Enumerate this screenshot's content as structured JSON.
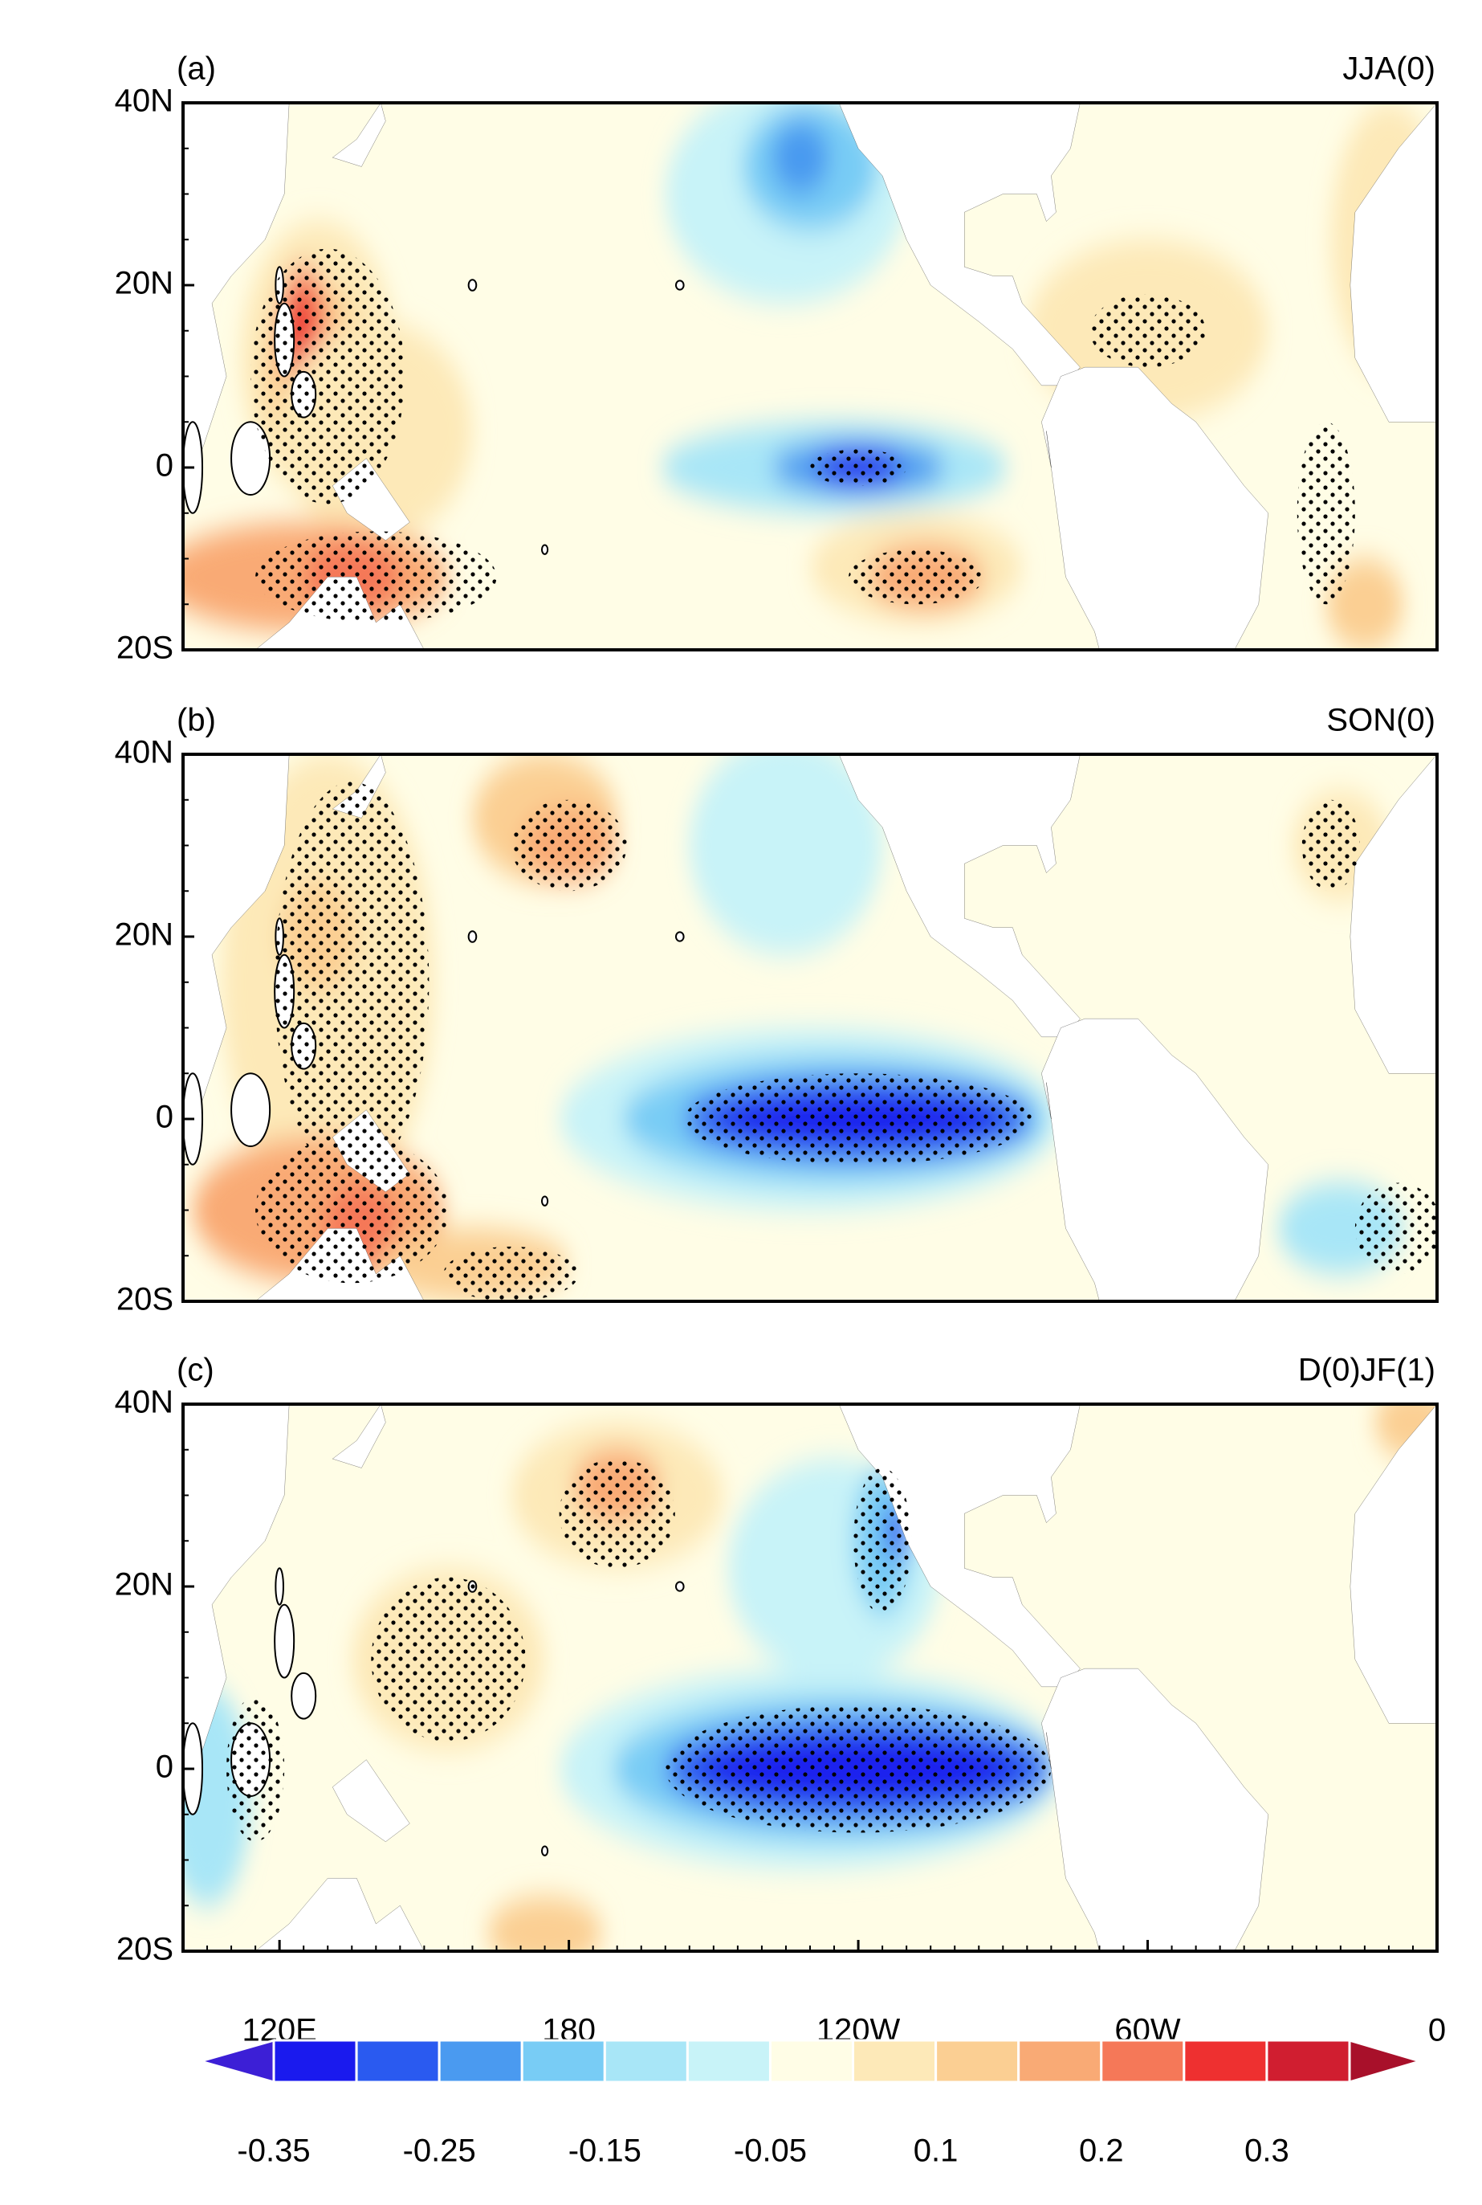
{
  "panels": [
    {
      "label": "(a)",
      "season": "JJA(0)"
    },
    {
      "label": "(b)",
      "season": "SON(0)"
    },
    {
      "label": "(c)",
      "season": "D(0)JF(1)"
    }
  ],
  "lat_ticks": [
    "40N",
    "20N",
    "0",
    "20S"
  ],
  "lon_ticks": [
    "120E",
    "180",
    "120W",
    "60W",
    "0"
  ],
  "colorbar": {
    "labels": [
      "-0.35",
      "-0.25",
      "-0.15",
      "-0.05",
      "0.1",
      "0.2",
      "0.3"
    ],
    "colors": [
      "#3c1fd6",
      "#1a1aee",
      "#2a5af0",
      "#4a9af0",
      "#78ccf5",
      "#a8e6f7",
      "#c8f3f8",
      "#fffde6",
      "#fde9b8",
      "#fbcf93",
      "#f9aa75",
      "#f57858",
      "#ee3030",
      "#d01e30",
      "#a8102a"
    ]
  }
}
